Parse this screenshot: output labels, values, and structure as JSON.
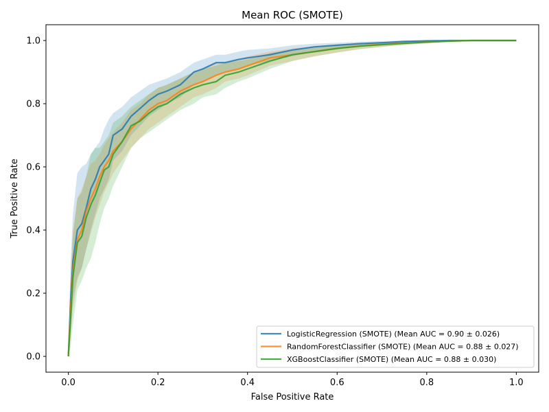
{
  "chart_data": {
    "type": "line",
    "title": "Mean ROC (SMOTE)",
    "xlabel": "False Positive Rate",
    "ylabel": "True Positive Rate",
    "xlim": [
      -0.05,
      1.05
    ],
    "ylim": [
      -0.05,
      1.05
    ],
    "xticks": [
      0.0,
      0.2,
      0.4,
      0.6,
      0.8,
      1.0
    ],
    "yticks": [
      0.0,
      0.2,
      0.4,
      0.6,
      0.8,
      1.0
    ],
    "xtick_labels": [
      "0.0",
      "0.2",
      "0.4",
      "0.6",
      "0.8",
      "1.0"
    ],
    "ytick_labels": [
      "0.0",
      "0.2",
      "0.4",
      "0.6",
      "0.8",
      "1.0"
    ],
    "grid": false,
    "legend_position": "lower-right",
    "series": [
      {
        "name": "LogisticRegression (SMOTE) (Mean AUC = 0.90 ± 0.026)",
        "color": "#1f77b4",
        "x": [
          0.0,
          0.005,
          0.01,
          0.02,
          0.03,
          0.04,
          0.05,
          0.06,
          0.07,
          0.08,
          0.09,
          0.1,
          0.12,
          0.14,
          0.16,
          0.18,
          0.2,
          0.22,
          0.25,
          0.28,
          0.3,
          0.33,
          0.35,
          0.38,
          0.4,
          0.45,
          0.5,
          0.55,
          0.6,
          0.65,
          0.7,
          0.75,
          0.8,
          0.85,
          0.9,
          0.95,
          1.0
        ],
        "y": [
          0.0,
          0.18,
          0.3,
          0.4,
          0.42,
          0.47,
          0.53,
          0.56,
          0.6,
          0.62,
          0.64,
          0.7,
          0.72,
          0.76,
          0.785,
          0.81,
          0.83,
          0.84,
          0.86,
          0.9,
          0.91,
          0.93,
          0.93,
          0.94,
          0.945,
          0.955,
          0.97,
          0.98,
          0.985,
          0.99,
          0.993,
          0.997,
          0.999,
          1.0,
          1.0,
          1.0,
          1.0
        ],
        "lower": [
          0.0,
          0.08,
          0.18,
          0.25,
          0.28,
          0.34,
          0.4,
          0.45,
          0.5,
          0.53,
          0.56,
          0.62,
          0.65,
          0.7,
          0.73,
          0.76,
          0.78,
          0.8,
          0.82,
          0.86,
          0.87,
          0.89,
          0.9,
          0.91,
          0.92,
          0.935,
          0.95,
          0.965,
          0.975,
          0.982,
          0.987,
          0.992,
          0.996,
          0.999,
          1.0,
          1.0,
          1.0
        ],
        "upper": [
          0.0,
          0.3,
          0.45,
          0.58,
          0.6,
          0.61,
          0.64,
          0.66,
          0.68,
          0.72,
          0.75,
          0.77,
          0.79,
          0.82,
          0.84,
          0.86,
          0.87,
          0.88,
          0.9,
          0.93,
          0.94,
          0.955,
          0.955,
          0.965,
          0.97,
          0.975,
          0.985,
          0.99,
          0.993,
          0.996,
          0.998,
          1.0,
          1.0,
          1.0,
          1.0,
          1.0,
          1.0
        ]
      },
      {
        "name": "RandomForestClassifier (SMOTE) (Mean AUC = 0.88 ± 0.027)",
        "color": "#ff7f0e",
        "x": [
          0.0,
          0.005,
          0.01,
          0.02,
          0.03,
          0.04,
          0.05,
          0.06,
          0.07,
          0.08,
          0.09,
          0.1,
          0.12,
          0.14,
          0.16,
          0.18,
          0.2,
          0.22,
          0.25,
          0.28,
          0.3,
          0.33,
          0.35,
          0.38,
          0.4,
          0.45,
          0.5,
          0.55,
          0.6,
          0.65,
          0.7,
          0.75,
          0.8,
          0.85,
          0.9,
          0.95,
          1.0
        ],
        "y": [
          0.0,
          0.15,
          0.27,
          0.37,
          0.4,
          0.46,
          0.5,
          0.53,
          0.57,
          0.6,
          0.62,
          0.65,
          0.68,
          0.72,
          0.75,
          0.78,
          0.8,
          0.81,
          0.84,
          0.86,
          0.87,
          0.89,
          0.9,
          0.91,
          0.92,
          0.945,
          0.955,
          0.965,
          0.975,
          0.983,
          0.988,
          0.992,
          0.995,
          0.998,
          1.0,
          1.0,
          1.0
        ],
        "lower": [
          0.0,
          0.06,
          0.15,
          0.24,
          0.28,
          0.34,
          0.39,
          0.44,
          0.48,
          0.52,
          0.55,
          0.58,
          0.62,
          0.66,
          0.69,
          0.72,
          0.74,
          0.76,
          0.79,
          0.82,
          0.83,
          0.85,
          0.87,
          0.88,
          0.89,
          0.92,
          0.935,
          0.95,
          0.962,
          0.973,
          0.98,
          0.986,
          0.991,
          0.996,
          0.999,
          1.0,
          1.0
        ],
        "upper": [
          0.0,
          0.26,
          0.4,
          0.5,
          0.53,
          0.57,
          0.61,
          0.62,
          0.64,
          0.67,
          0.69,
          0.71,
          0.74,
          0.78,
          0.8,
          0.83,
          0.85,
          0.86,
          0.88,
          0.9,
          0.91,
          0.93,
          0.93,
          0.94,
          0.95,
          0.965,
          0.975,
          0.982,
          0.988,
          0.992,
          0.995,
          0.997,
          0.999,
          1.0,
          1.0,
          1.0,
          1.0
        ]
      },
      {
        "name": "XGBoostClassifier (SMOTE) (Mean AUC = 0.88 ± 0.030)",
        "color": "#2ca02c",
        "x": [
          0.0,
          0.005,
          0.01,
          0.02,
          0.03,
          0.04,
          0.05,
          0.06,
          0.07,
          0.08,
          0.09,
          0.1,
          0.12,
          0.14,
          0.16,
          0.18,
          0.2,
          0.22,
          0.25,
          0.28,
          0.3,
          0.33,
          0.35,
          0.38,
          0.4,
          0.45,
          0.5,
          0.55,
          0.6,
          0.65,
          0.7,
          0.75,
          0.8,
          0.85,
          0.9,
          0.95,
          1.0
        ],
        "y": [
          0.0,
          0.12,
          0.25,
          0.36,
          0.38,
          0.44,
          0.48,
          0.51,
          0.55,
          0.59,
          0.6,
          0.64,
          0.68,
          0.73,
          0.745,
          0.77,
          0.79,
          0.8,
          0.83,
          0.85,
          0.86,
          0.87,
          0.89,
          0.9,
          0.91,
          0.935,
          0.955,
          0.965,
          0.975,
          0.982,
          0.987,
          0.991,
          0.995,
          0.998,
          1.0,
          1.0,
          1.0
        ],
        "lower": [
          0.0,
          0.03,
          0.1,
          0.21,
          0.24,
          0.28,
          0.31,
          0.36,
          0.42,
          0.47,
          0.5,
          0.54,
          0.6,
          0.66,
          0.69,
          0.71,
          0.73,
          0.75,
          0.78,
          0.8,
          0.82,
          0.83,
          0.85,
          0.87,
          0.88,
          0.91,
          0.935,
          0.95,
          0.962,
          0.972,
          0.98,
          0.986,
          0.991,
          0.996,
          0.999,
          1.0,
          1.0
        ],
        "upper": [
          0.0,
          0.22,
          0.38,
          0.5,
          0.52,
          0.57,
          0.64,
          0.66,
          0.66,
          0.68,
          0.7,
          0.74,
          0.76,
          0.79,
          0.81,
          0.83,
          0.85,
          0.86,
          0.88,
          0.9,
          0.91,
          0.92,
          0.93,
          0.935,
          0.94,
          0.96,
          0.972,
          0.98,
          0.986,
          0.991,
          0.994,
          0.996,
          0.998,
          1.0,
          1.0,
          1.0,
          1.0
        ]
      }
    ]
  }
}
